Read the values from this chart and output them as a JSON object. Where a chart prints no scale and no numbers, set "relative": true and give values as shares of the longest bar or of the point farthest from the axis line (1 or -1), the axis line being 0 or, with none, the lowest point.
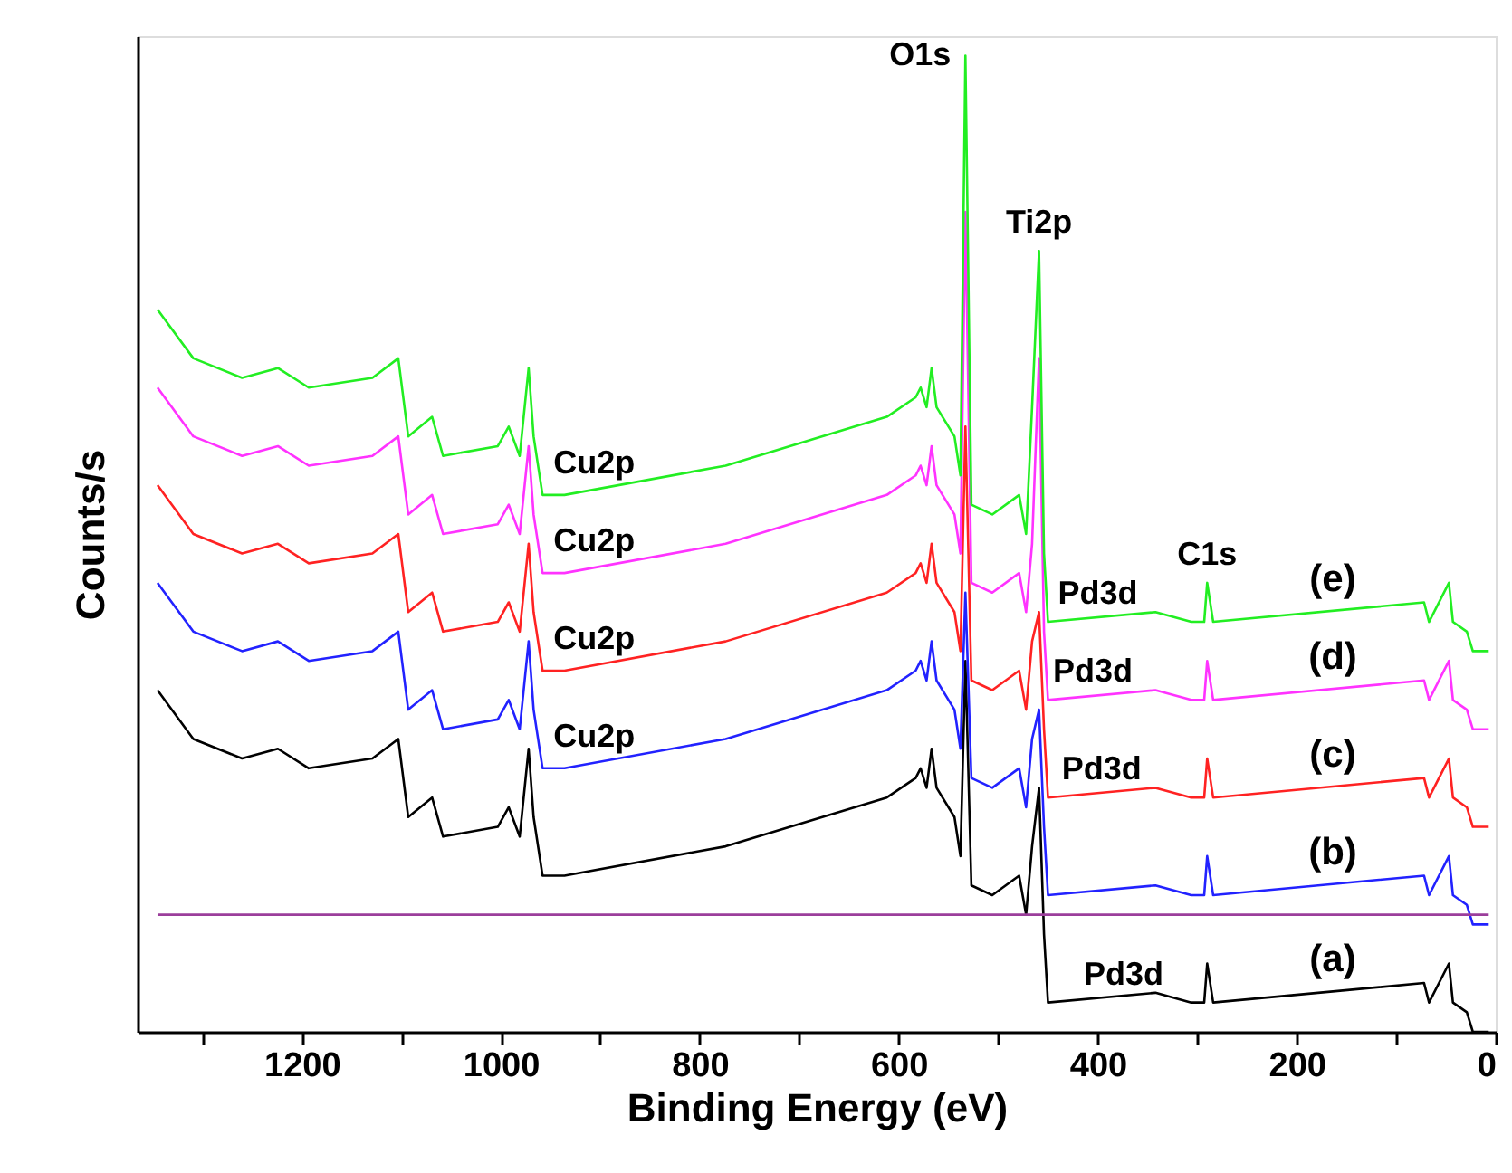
{
  "chart_data": {
    "type": "line",
    "relative": true,
    "xlabel": "Binding Energy (eV)",
    "ylabel": "Counts/s",
    "xlim": [
      1365,
      0
    ],
    "xticks": [
      {
        "value": 1300,
        "label": null
      },
      1200,
      {
        "value": 1100,
        "label": null
      },
      1000,
      {
        "value": 900,
        "label": null
      },
      800,
      {
        "value": 700,
        "label": null
      },
      600,
      {
        "value": 500,
        "label": null
      },
      400,
      {
        "value": 300,
        "label": null
      },
      200,
      {
        "value": 100,
        "label": null
      },
      0
    ],
    "tick_labels": "x",
    "x": [
      1345,
      1309,
      1260,
      1224,
      1193,
      1129,
      1103,
      1093,
      1069,
      1058,
      1003,
      992,
      981,
      972,
      967,
      958,
      936,
      774,
      612,
      583,
      578,
      572,
      567,
      562,
      544,
      538,
      533,
      527,
      506,
      479,
      472,
      466,
      459,
      454,
      450,
      342,
      306,
      293,
      290,
      284,
      72,
      67,
      47,
      43,
      29,
      23,
      7
    ],
    "series": [
      {
        "name": "(a)",
        "color": "#000000",
        "values": [
          0.35,
          0.3,
          0.28,
          0.29,
          0.27,
          0.28,
          0.3,
          0.22,
          0.24,
          0.2,
          0.21,
          0.23,
          0.2,
          0.29,
          0.22,
          0.16,
          0.16,
          0.19,
          0.24,
          0.26,
          0.27,
          0.25,
          0.29,
          0.25,
          0.22,
          0.18,
          0.38,
          0.15,
          0.14,
          0.16,
          0.12,
          0.19,
          0.25,
          0.1,
          0.03,
          0.04,
          0.03,
          0.03,
          0.07,
          0.03,
          0.05,
          0.03,
          0.07,
          0.03,
          0.02,
          0.0,
          0.0
        ]
      },
      {
        "name": "(b)",
        "color": "#2222ff",
        "values": [
          0.46,
          0.41,
          0.39,
          0.4,
          0.38,
          0.39,
          0.41,
          0.33,
          0.35,
          0.31,
          0.32,
          0.34,
          0.31,
          0.4,
          0.33,
          0.27,
          0.27,
          0.3,
          0.35,
          0.37,
          0.38,
          0.36,
          0.4,
          0.36,
          0.33,
          0.29,
          0.45,
          0.26,
          0.25,
          0.27,
          0.23,
          0.3,
          0.33,
          0.21,
          0.14,
          0.15,
          0.14,
          0.14,
          0.18,
          0.14,
          0.16,
          0.14,
          0.18,
          0.14,
          0.13,
          0.11,
          0.11
        ]
      },
      {
        "name": "(c)",
        "color": "#ff2222",
        "values": [
          0.56,
          0.51,
          0.49,
          0.5,
          0.48,
          0.49,
          0.51,
          0.43,
          0.45,
          0.41,
          0.42,
          0.44,
          0.41,
          0.5,
          0.43,
          0.37,
          0.37,
          0.4,
          0.45,
          0.47,
          0.48,
          0.46,
          0.5,
          0.46,
          0.43,
          0.39,
          0.62,
          0.36,
          0.35,
          0.37,
          0.33,
          0.4,
          0.43,
          0.31,
          0.24,
          0.25,
          0.24,
          0.24,
          0.28,
          0.24,
          0.26,
          0.24,
          0.28,
          0.24,
          0.23,
          0.21,
          0.21
        ]
      },
      {
        "name": "(d)",
        "color": "#ff33ff",
        "values": [
          0.66,
          0.61,
          0.59,
          0.6,
          0.58,
          0.59,
          0.61,
          0.53,
          0.55,
          0.51,
          0.52,
          0.54,
          0.51,
          0.6,
          0.53,
          0.47,
          0.47,
          0.5,
          0.55,
          0.57,
          0.58,
          0.56,
          0.6,
          0.56,
          0.53,
          0.49,
          0.84,
          0.46,
          0.45,
          0.47,
          0.43,
          0.5,
          0.69,
          0.41,
          0.34,
          0.35,
          0.34,
          0.34,
          0.38,
          0.34,
          0.36,
          0.34,
          0.38,
          0.34,
          0.33,
          0.31,
          0.31
        ]
      },
      {
        "name": "(e)",
        "color": "#22ee22",
        "values": [
          0.74,
          0.69,
          0.67,
          0.68,
          0.66,
          0.67,
          0.69,
          0.61,
          0.63,
          0.59,
          0.6,
          0.62,
          0.59,
          0.68,
          0.61,
          0.55,
          0.55,
          0.58,
          0.63,
          0.65,
          0.66,
          0.64,
          0.68,
          0.64,
          0.61,
          0.57,
          1.0,
          0.54,
          0.53,
          0.55,
          0.51,
          0.64,
          0.8,
          0.49,
          0.42,
          0.43,
          0.42,
          0.42,
          0.46,
          0.42,
          0.44,
          0.42,
          0.46,
          0.42,
          0.41,
          0.39,
          0.39
        ]
      },
      {
        "color": "#9b3e9b",
        "x": [
          1345,
          7
        ],
        "values": [
          0.12,
          0.12
        ]
      }
    ],
    "annotations": [
      {
        "text": "O1s",
        "x": 533,
        "y": 1.0
      },
      {
        "text": "Ti2p",
        "x": 459,
        "y": 0.8
      },
      {
        "text": "Cu2p",
        "x": 958,
        "y": 0.55
      },
      {
        "text": "Cu2p",
        "x": 958,
        "y": 0.47
      },
      {
        "text": "Cu2p",
        "x": 958,
        "y": 0.37
      },
      {
        "text": "Cu2p",
        "x": 958,
        "y": 0.27
      },
      {
        "text": "C1s",
        "x": 290,
        "y": 0.46
      },
      {
        "text": "Pd3d",
        "x": 400,
        "y": 0.42
      },
      {
        "text": "Pd3d",
        "x": 405,
        "y": 0.34
      },
      {
        "text": "Pd3d",
        "x": 396,
        "y": 0.24
      },
      {
        "text": "Pd3d",
        "x": 374,
        "y": 0.03
      }
    ]
  }
}
